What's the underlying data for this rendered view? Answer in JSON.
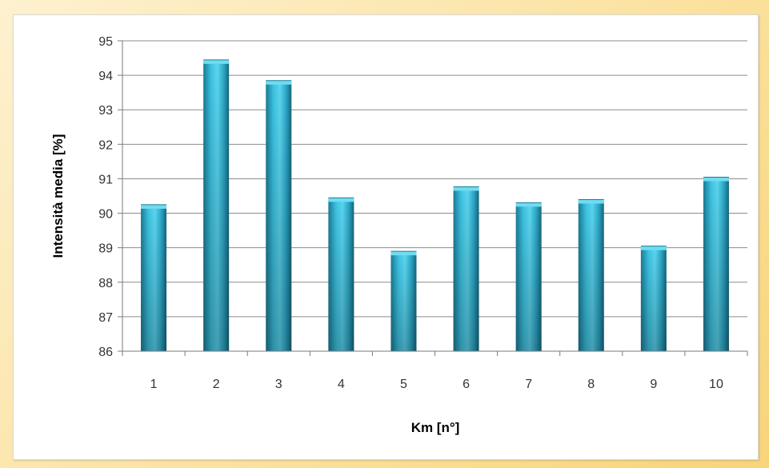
{
  "chart_data": {
    "type": "bar",
    "title": "",
    "xlabel": "Km [n°]",
    "ylabel": "Intensità media [%]",
    "categories": [
      "1",
      "2",
      "3",
      "4",
      "5",
      "6",
      "7",
      "8",
      "9",
      "10"
    ],
    "values": [
      90.2,
      94.4,
      93.8,
      90.4,
      88.85,
      90.72,
      90.26,
      90.35,
      89.0,
      91.0
    ],
    "ylim": [
      86,
      95
    ],
    "yticks": [
      86,
      87,
      88,
      89,
      90,
      91,
      92,
      93,
      94,
      95
    ],
    "grid": true,
    "legend": "none",
    "colors": {
      "bar": "#2aa8c8",
      "bar_light": "#5fd3ec",
      "bar_dark": "#1b6f86",
      "grid": "#8c8c8c"
    }
  }
}
